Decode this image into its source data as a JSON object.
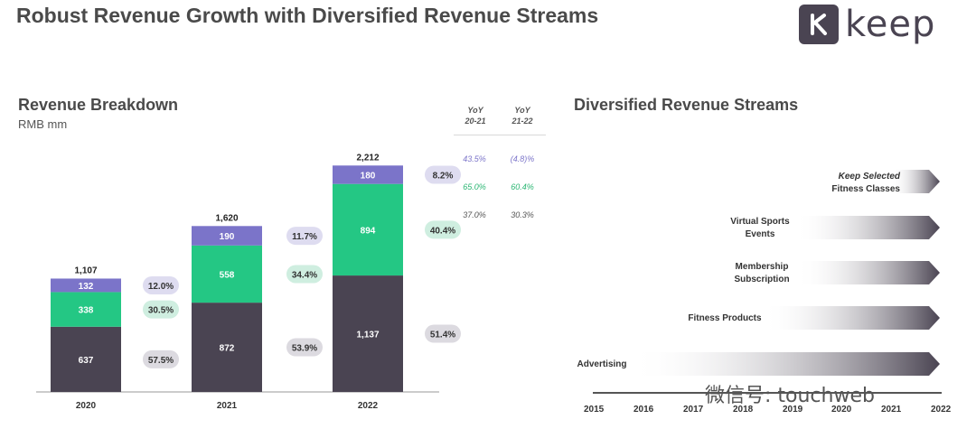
{
  "header": {
    "title": "Robust Revenue Growth with Diversified Revenue Streams",
    "logo_text": "keep"
  },
  "revenue": {
    "title": "Revenue Breakdown",
    "unit": "RMB mm",
    "yoy": {
      "col1": [
        "YoY",
        "20-21"
      ],
      "col2": [
        "YoY",
        "21-22"
      ],
      "rows": [
        {
          "v1": "43.5%",
          "v2": "(4.8)%",
          "color": "#7b74c9"
        },
        {
          "v1": "65.0%",
          "v2": "60.4%",
          "color": "#2bb673"
        },
        {
          "v1": "37.0%",
          "v2": "30.3%",
          "color": "#555555"
        }
      ]
    }
  },
  "chart_data": {
    "type": "bar",
    "stacked": true,
    "title": "Revenue Breakdown",
    "ylabel": "RMB mm",
    "categories": [
      "2020",
      "2021",
      "2022"
    ],
    "totals": [
      "1,107",
      "1,620",
      "2,212"
    ],
    "series": [
      {
        "name": "Bottom",
        "color": "#4a4452",
        "values": [
          637,
          872,
          1137
        ],
        "labels": [
          "637",
          "872",
          "1,137"
        ],
        "pcts": [
          "57.5%",
          "53.9%",
          "51.4%"
        ],
        "pill": "#dcdae0"
      },
      {
        "name": "Middle",
        "color": "#24c784",
        "values": [
          338,
          558,
          894
        ],
        "labels": [
          "338",
          "558",
          "894"
        ],
        "pcts": [
          "30.5%",
          "34.4%",
          "40.4%"
        ],
        "pill": "#cfeee0"
      },
      {
        "name": "Top",
        "color": "#7b74c9",
        "values": [
          132,
          190,
          180
        ],
        "labels": [
          "132",
          "190",
          "180"
        ],
        "pcts": [
          "12.0%",
          "11.7%",
          "8.2%"
        ],
        "pill": "#dedcf0"
      }
    ],
    "ylim": [
      0,
      2212
    ]
  },
  "streams": {
    "title": "Diversified Revenue Streams",
    "items": [
      {
        "label_1": "Keep Selected",
        "label_2": "Fitness Classes"
      },
      {
        "label_1": "Virtual Sports",
        "label_2": "Events"
      },
      {
        "label_1": "Membership",
        "label_2": "Subscription"
      },
      {
        "label_1": "Fitness Products",
        "label_2": ""
      },
      {
        "label_1": "Advertising",
        "label_2": ""
      }
    ],
    "years": [
      "2015",
      "2016",
      "2017",
      "2018",
      "2019",
      "2020",
      "2021",
      "2022"
    ]
  },
  "watermark": "微信号: touchweb"
}
